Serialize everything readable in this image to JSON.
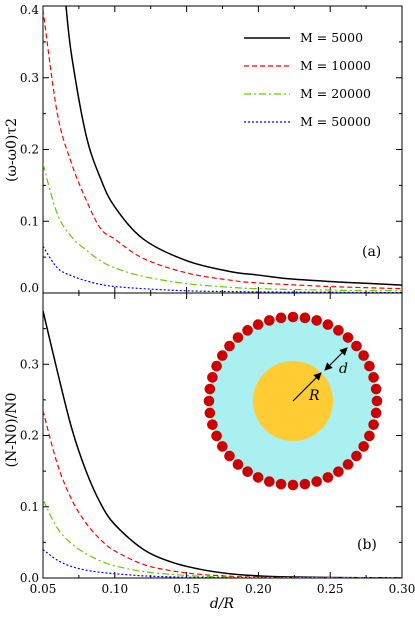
{
  "chart_data": [
    {
      "type": "line",
      "panel_label": "(a)",
      "ylabel": "(ω-ω0)τ2",
      "xlabel": "d/R",
      "xlim": [
        0.05,
        0.3
      ],
      "ylim": [
        0,
        0.4
      ],
      "xticks": [
        0.05,
        0.1,
        0.15,
        0.2,
        0.25,
        0.3
      ],
      "xtick_labels": [],
      "yticks": [
        0.0,
        0.1,
        0.2,
        0.3,
        0.4
      ],
      "ytick_labels": [
        "0.0",
        "0.1",
        "0.2",
        "0.3",
        "0.4"
      ],
      "legend": {
        "placement": "top-right"
      },
      "series": [
        {
          "name": "M = 5000",
          "color": "#000000",
          "dash": "solid",
          "x": [
            0.066,
            0.07,
            0.08,
            0.09,
            0.1,
            0.12,
            0.15,
            0.18,
            0.2,
            0.22,
            0.25,
            0.28,
            0.3
          ],
          "y": [
            0.4,
            0.33,
            0.22,
            0.16,
            0.12,
            0.075,
            0.045,
            0.03,
            0.025,
            0.02,
            0.016,
            0.013,
            0.011
          ]
        },
        {
          "name": "M = 10000",
          "color": "#ff0000",
          "dash": "dashed",
          "x": [
            0.05,
            0.06,
            0.07,
            0.08,
            0.09,
            0.1,
            0.12,
            0.15,
            0.18,
            0.2,
            0.25,
            0.3
          ],
          "y": [
            0.395,
            0.25,
            0.18,
            0.13,
            0.09,
            0.075,
            0.048,
            0.028,
            0.018,
            0.014,
            0.009,
            0.006
          ]
        },
        {
          "name": "M = 20000",
          "color": "#66cc00",
          "dash": "dashdot",
          "x": [
            0.05,
            0.06,
            0.07,
            0.08,
            0.09,
            0.1,
            0.12,
            0.15,
            0.18,
            0.2,
            0.25,
            0.3
          ],
          "y": [
            0.18,
            0.11,
            0.078,
            0.06,
            0.045,
            0.035,
            0.023,
            0.013,
            0.008,
            0.006,
            0.004,
            0.003
          ]
        },
        {
          "name": "M = 50000",
          "color": "#0000ff",
          "dash": "dotted",
          "x": [
            0.05,
            0.06,
            0.07,
            0.08,
            0.09,
            0.1,
            0.12,
            0.15,
            0.18,
            0.2,
            0.25,
            0.3
          ],
          "y": [
            0.065,
            0.035,
            0.024,
            0.017,
            0.012,
            0.009,
            0.006,
            0.003,
            0.002,
            0.0015,
            0.001,
            0.0005
          ]
        }
      ]
    },
    {
      "type": "line",
      "panel_label": "(b)",
      "ylabel": "(N-N0)/N0",
      "xlabel": "d/R",
      "xlim": [
        0.05,
        0.3
      ],
      "ylim": [
        0,
        0.4
      ],
      "xticks": [
        0.05,
        0.1,
        0.15,
        0.2,
        0.25,
        0.3
      ],
      "xtick_labels": [
        "0.05",
        "0.10",
        "0.15",
        "0.20",
        "0.25",
        "0.30"
      ],
      "yticks": [
        0.0,
        0.1,
        0.2,
        0.3
      ],
      "ytick_labels": [
        "0.0",
        "0.1",
        "0.2",
        "0.3"
      ],
      "series": [
        {
          "name": "M = 5000",
          "color": "#000000",
          "dash": "solid",
          "x": [
            0.05,
            0.06,
            0.07,
            0.08,
            0.09,
            0.1,
            0.12,
            0.14,
            0.16,
            0.18,
            0.2,
            0.22,
            0.25,
            0.3
          ],
          "y": [
            0.375,
            0.29,
            0.21,
            0.15,
            0.105,
            0.075,
            0.04,
            0.022,
            0.012,
            0.006,
            0.003,
            0.0015,
            0.0007,
            0.0002
          ]
        },
        {
          "name": "M = 10000",
          "color": "#ff0000",
          "dash": "dashed",
          "x": [
            0.05,
            0.06,
            0.07,
            0.08,
            0.09,
            0.1,
            0.12,
            0.14,
            0.16,
            0.18,
            0.2,
            0.25,
            0.3
          ],
          "y": [
            0.235,
            0.16,
            0.11,
            0.077,
            0.054,
            0.038,
            0.019,
            0.01,
            0.005,
            0.0025,
            0.0012,
            0.0004,
            0.0001
          ]
        },
        {
          "name": "M = 20000",
          "color": "#66cc00",
          "dash": "dashdot",
          "x": [
            0.05,
            0.06,
            0.07,
            0.08,
            0.09,
            0.1,
            0.12,
            0.14,
            0.16,
            0.18,
            0.2,
            0.25,
            0.3
          ],
          "y": [
            0.11,
            0.07,
            0.048,
            0.034,
            0.024,
            0.017,
            0.009,
            0.005,
            0.0025,
            0.0012,
            0.0006,
            0.0002,
            0.0001
          ]
        },
        {
          "name": "M = 50000",
          "color": "#0000ff",
          "dash": "dotted",
          "x": [
            0.05,
            0.06,
            0.07,
            0.08,
            0.09,
            0.1,
            0.12,
            0.14,
            0.16,
            0.18,
            0.2,
            0.25,
            0.3
          ],
          "y": [
            0.04,
            0.025,
            0.016,
            0.011,
            0.008,
            0.006,
            0.003,
            0.0015,
            0.0008,
            0.0004,
            0.0002,
            0.0001,
            0.0
          ]
        }
      ]
    }
  ],
  "inset": {
    "label_R": "R",
    "label_d": "d",
    "colors": {
      "core": "#ffcc33",
      "shell": "#aaf0f0",
      "particles": "#cc0000",
      "arrow": "#000000"
    },
    "particle_count": 44
  }
}
